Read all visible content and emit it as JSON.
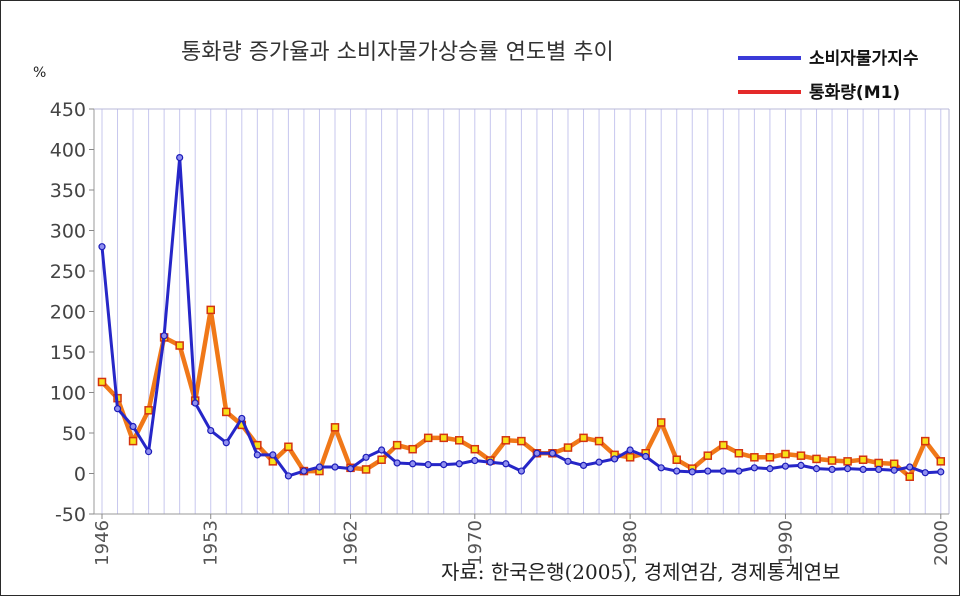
{
  "chart_data": {
    "type": "line",
    "title": "통화량 증가율과 소비자물가상승률 연도별 추이",
    "ylabel": "%",
    "xlabel": "",
    "ylim": [
      -50,
      450
    ],
    "xlim": [
      1946,
      2000
    ],
    "yticks": [
      "-50",
      "0",
      "50",
      "100",
      "150",
      "200",
      "250",
      "300",
      "350",
      "400",
      "450"
    ],
    "xticks": [
      "1946",
      "1953",
      "1962",
      "1970",
      "1980",
      "1990",
      "2000"
    ],
    "grid": "vertical",
    "legend_position": "top-right",
    "series": [
      {
        "name": "소비자물가지수",
        "color": "#2626c8",
        "marker": "circle",
        "x": [
          1946,
          1947,
          1948,
          1949,
          1950,
          1951,
          1952,
          1953,
          1954,
          1955,
          1956,
          1957,
          1958,
          1959,
          1960,
          1961,
          1962,
          1963,
          1964,
          1965,
          1966,
          1967,
          1968,
          1969,
          1970,
          1971,
          1972,
          1973,
          1974,
          1975,
          1976,
          1977,
          1978,
          1979,
          1980,
          1981,
          1982,
          1983,
          1984,
          1985,
          1986,
          1987,
          1988,
          1989,
          1990,
          1991,
          1992,
          1993,
          1994,
          1995,
          1996,
          1997,
          1998,
          1999,
          2000
        ],
        "y": [
          280,
          80,
          58,
          27,
          170,
          390,
          87,
          53,
          38,
          68,
          23,
          23,
          -3,
          3,
          8,
          8,
          6,
          20,
          29,
          13,
          12,
          11,
          11,
          12,
          16,
          14,
          12,
          3,
          25,
          25,
          15,
          10,
          14,
          18,
          29,
          21,
          7,
          3,
          2,
          3,
          3,
          3,
          7,
          6,
          9,
          10,
          6,
          5,
          6,
          5,
          5,
          4,
          8,
          1,
          2
        ]
      },
      {
        "name": "통화량(M1)",
        "color": "#f07818",
        "marker": "square",
        "x": [
          1946,
          1947,
          1948,
          1949,
          1950,
          1951,
          1952,
          1953,
          1954,
          1955,
          1956,
          1957,
          1958,
          1959,
          1960,
          1961,
          1962,
          1963,
          1964,
          1965,
          1966,
          1967,
          1968,
          1969,
          1970,
          1971,
          1972,
          1973,
          1974,
          1975,
          1976,
          1977,
          1978,
          1979,
          1980,
          1981,
          1982,
          1983,
          1984,
          1985,
          1986,
          1987,
          1988,
          1989,
          1990,
          1991,
          1992,
          1993,
          1994,
          1995,
          1996,
          1997,
          1998,
          1999,
          2000
        ],
        "y": [
          113,
          93,
          40,
          78,
          168,
          158,
          90,
          202,
          76,
          60,
          35,
          15,
          33,
          3,
          3,
          57,
          7,
          5,
          17,
          35,
          30,
          44,
          44,
          41,
          30,
          16,
          41,
          40,
          25,
          25,
          32,
          44,
          40,
          23,
          20,
          25,
          63,
          17,
          6,
          22,
          35,
          25,
          20,
          20,
          24,
          22,
          18,
          16,
          15,
          17,
          13,
          12,
          -4,
          40,
          15
        ]
      }
    ],
    "legend": [
      "소비자물가지수",
      "통화량(M1)"
    ],
    "source": "자료: 한국은행(2005), 경제연감, 경제통계연보"
  }
}
